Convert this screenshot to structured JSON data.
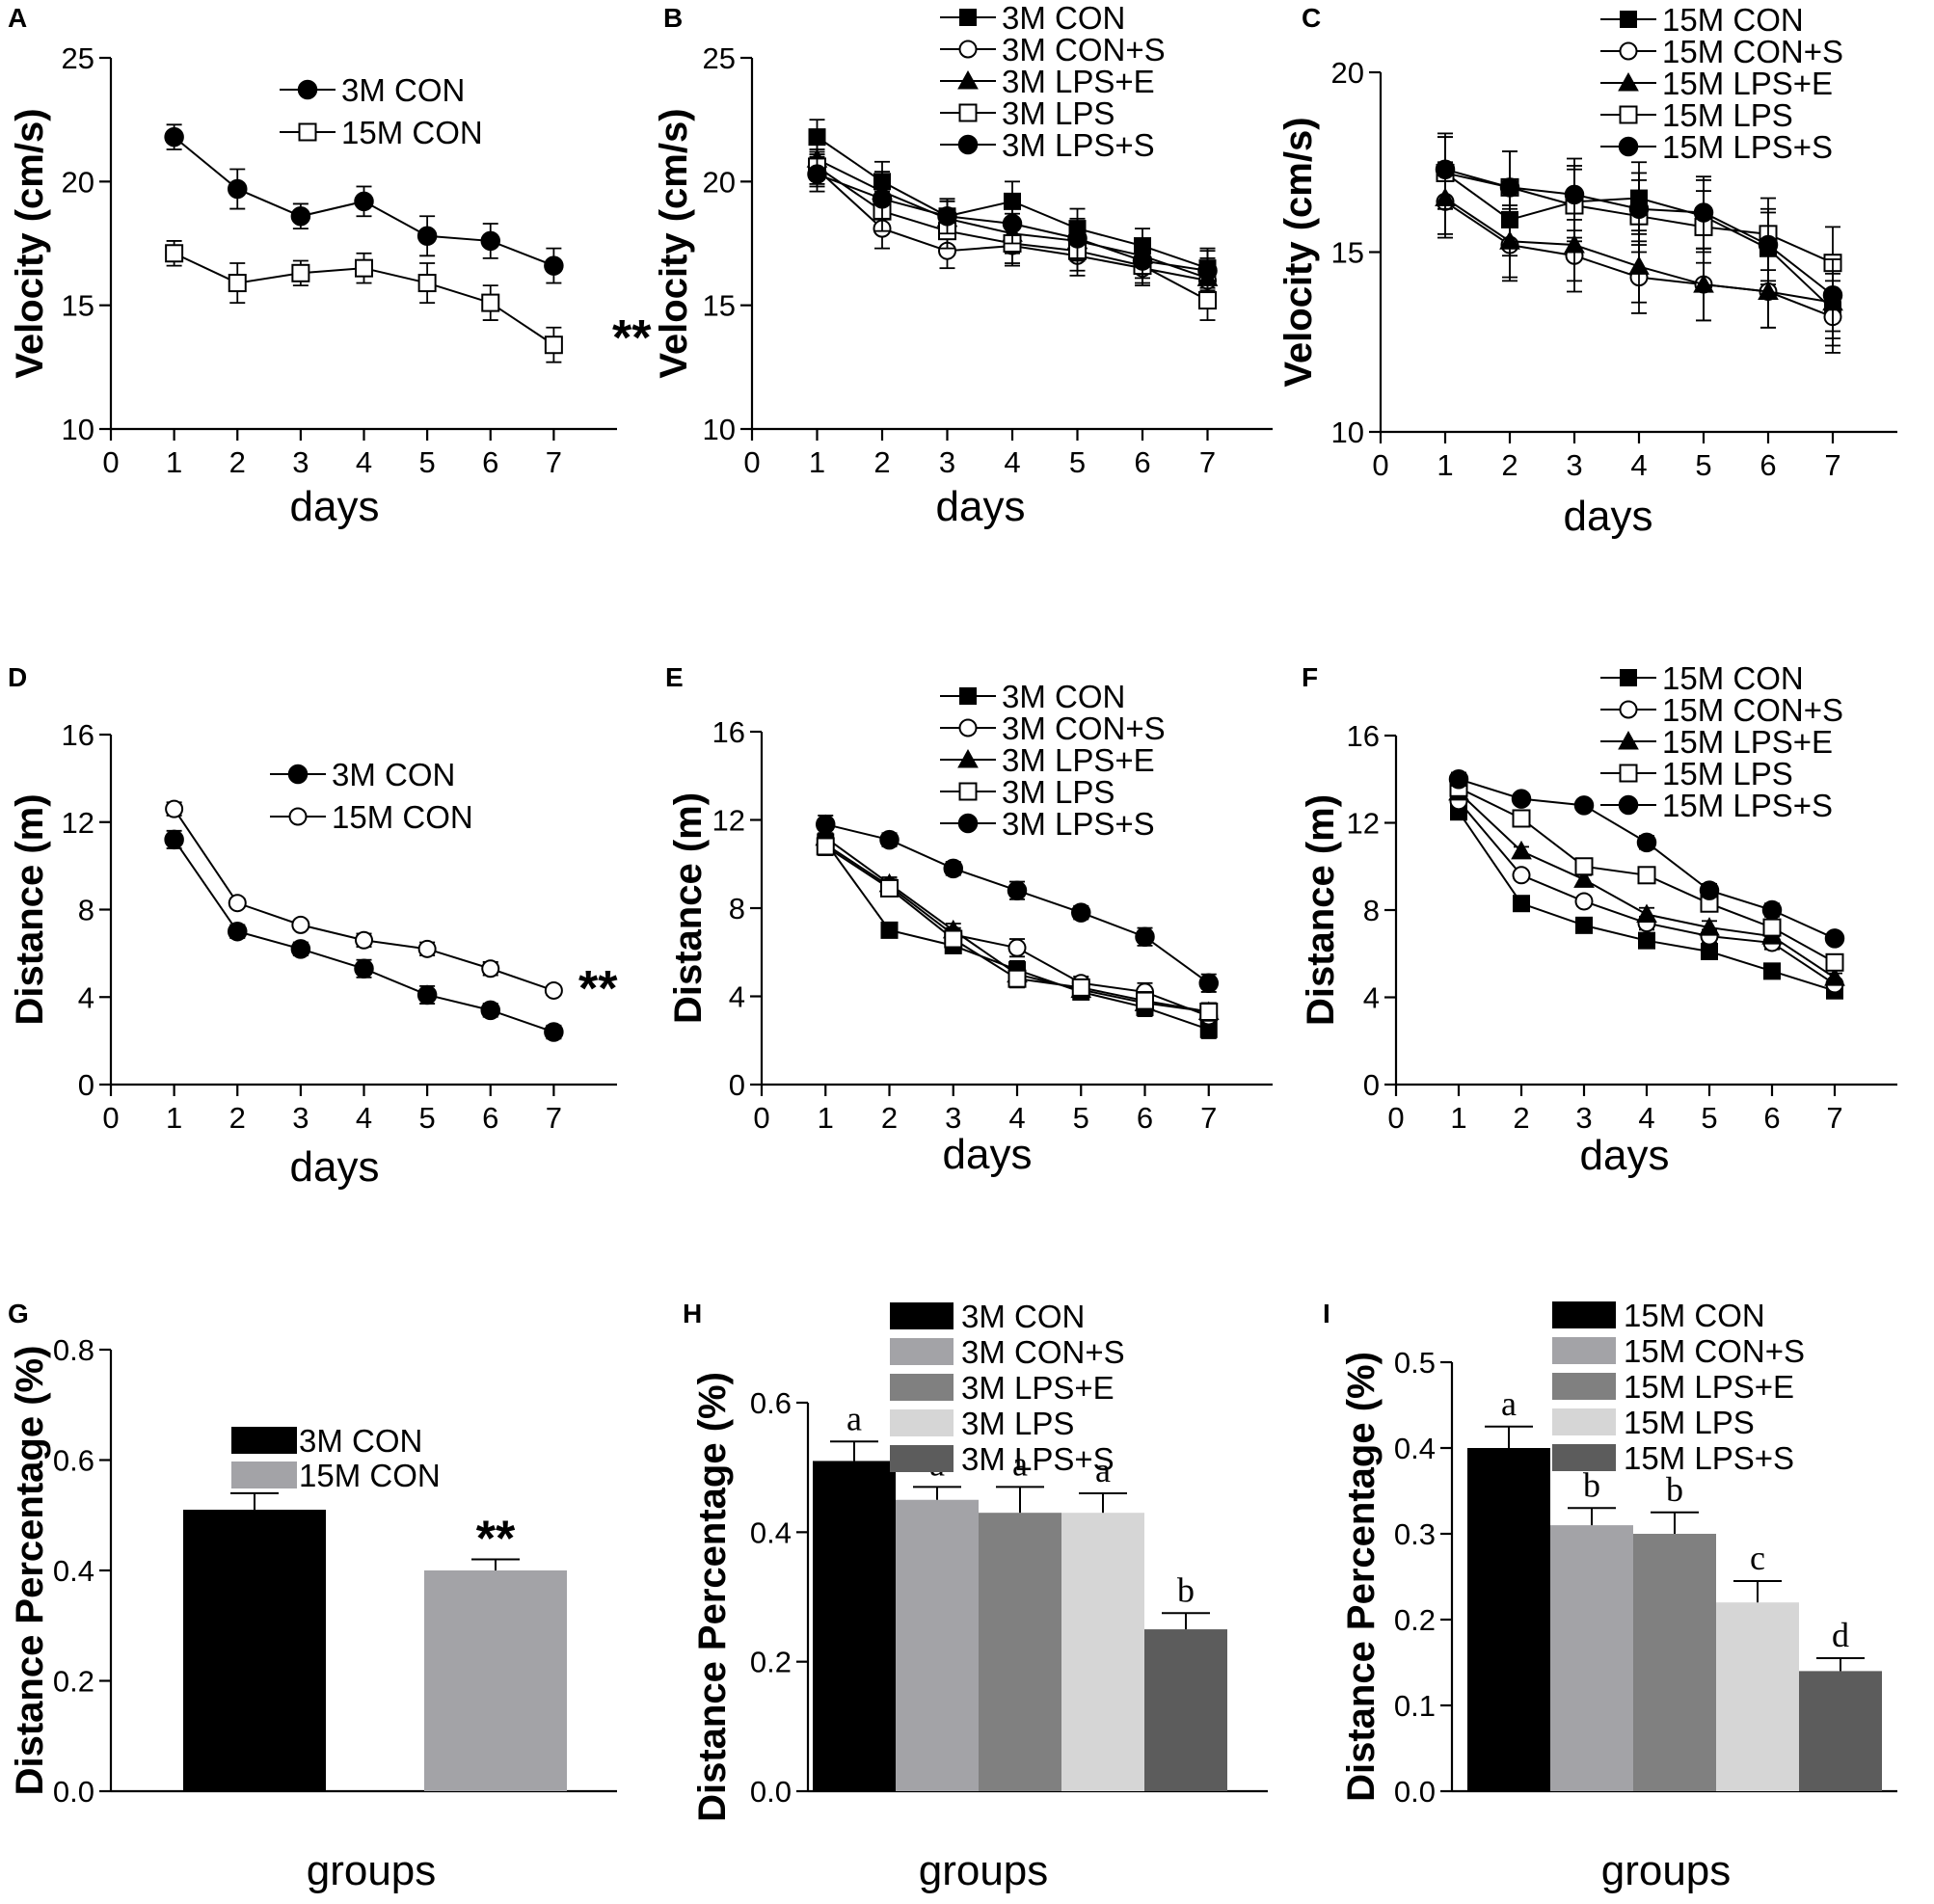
{
  "chart_data": [
    {
      "id": "A",
      "panel_label": "A",
      "type": "line",
      "xlabel": "days",
      "ylabel": "Velocity (cm/s)",
      "xlim": [
        0,
        8
      ],
      "ylim": [
        10,
        25
      ],
      "xticks": [
        "0",
        "1",
        "2",
        "3",
        "4",
        "5",
        "6",
        "7"
      ],
      "yticks": [
        "10",
        "15",
        "20",
        "25"
      ],
      "x": [
        1,
        2,
        3,
        4,
        5,
        6,
        7
      ],
      "series": [
        {
          "name": "3M CON",
          "marker": "filled-circle",
          "values": [
            21.8,
            19.7,
            18.6,
            19.2,
            17.8,
            17.6,
            16.6
          ],
          "errors": [
            0.5,
            0.8,
            0.5,
            0.6,
            0.8,
            0.7,
            0.7
          ]
        },
        {
          "name": "15M CON",
          "marker": "open-square",
          "values": [
            17.1,
            15.9,
            16.3,
            16.5,
            15.9,
            15.1,
            13.4
          ],
          "errors": [
            0.5,
            0.8,
            0.5,
            0.6,
            0.8,
            0.7,
            0.7
          ]
        }
      ],
      "annotation": "**"
    },
    {
      "id": "B",
      "panel_label": "B",
      "type": "line",
      "xlabel": "days",
      "ylabel": "Velocity (cm/s)",
      "xlim": [
        0,
        8
      ],
      "ylim": [
        10,
        25
      ],
      "xticks": [
        "0",
        "1",
        "2",
        "3",
        "4",
        "5",
        "6",
        "7"
      ],
      "yticks": [
        "10",
        "15",
        "20",
        "25"
      ],
      "x": [
        1,
        2,
        3,
        4,
        5,
        6,
        7
      ],
      "series": [
        {
          "name": "3M CON",
          "marker": "filled-square",
          "values": [
            21.8,
            20.0,
            18.6,
            19.2,
            18.1,
            17.4,
            16.5
          ],
          "errors": [
            0.7,
            0.8,
            0.7,
            0.8,
            0.8,
            0.7,
            0.8
          ]
        },
        {
          "name": "3M CON+S",
          "marker": "open-circle",
          "values": [
            20.5,
            18.1,
            17.2,
            17.4,
            17.0,
            16.5,
            16.0
          ],
          "errors": [
            0.7,
            0.8,
            0.7,
            0.8,
            0.8,
            0.7,
            0.8
          ]
        },
        {
          "name": "3M LPS+E",
          "marker": "filled-triangle",
          "values": [
            20.9,
            19.6,
            18.5,
            17.9,
            17.6,
            17.0,
            16.1
          ],
          "errors": [
            0.7,
            0.8,
            0.7,
            0.8,
            0.8,
            0.7,
            0.8
          ]
        },
        {
          "name": "3M LPS",
          "marker": "open-square",
          "values": [
            20.6,
            18.8,
            18.0,
            17.5,
            17.2,
            16.6,
            15.2
          ],
          "errors": [
            0.7,
            0.8,
            0.7,
            0.8,
            0.8,
            0.7,
            0.8
          ]
        },
        {
          "name": "3M LPS+S",
          "marker": "filled-circle",
          "values": [
            20.3,
            19.3,
            18.6,
            18.3,
            17.7,
            16.8,
            16.4
          ],
          "errors": [
            0.7,
            0.8,
            0.7,
            0.8,
            0.8,
            0.7,
            0.8
          ]
        }
      ]
    },
    {
      "id": "C",
      "panel_label": "C",
      "type": "line",
      "xlabel": "days",
      "ylabel": "Velocity (cm/s)",
      "xlim": [
        0,
        8
      ],
      "ylim": [
        10,
        20
      ],
      "xticks": [
        "0",
        "1",
        "2",
        "3",
        "4",
        "5",
        "6",
        "7"
      ],
      "yticks": [
        "10",
        "15",
        "20"
      ],
      "x": [
        1,
        2,
        3,
        4,
        5,
        6,
        7
      ],
      "series": [
        {
          "name": "15M CON",
          "marker": "filled-square",
          "values": [
            17.2,
            15.9,
            16.4,
            16.5,
            16.0,
            15.1,
            13.4
          ],
          "errors": [
            1.0,
            1.0,
            1.0,
            1.0,
            1.0,
            1.0,
            1.0
          ]
        },
        {
          "name": "15M CON+S",
          "marker": "open-circle",
          "values": [
            16.4,
            15.2,
            14.9,
            14.3,
            14.1,
            13.9,
            13.2
          ],
          "errors": [
            1.0,
            1.0,
            1.0,
            1.0,
            1.0,
            1.0,
            1.0
          ]
        },
        {
          "name": "15M LPS+E",
          "marker": "filled-triangle",
          "values": [
            16.5,
            15.3,
            15.2,
            14.6,
            14.1,
            13.9,
            13.6
          ],
          "errors": [
            1.0,
            1.0,
            1.0,
            1.0,
            1.0,
            1.0,
            1.0
          ]
        },
        {
          "name": "15M LPS",
          "marker": "open-square",
          "values": [
            17.2,
            16.8,
            16.3,
            16.0,
            15.7,
            15.5,
            14.7
          ],
          "errors": [
            1.0,
            1.0,
            1.0,
            1.0,
            1.0,
            1.0,
            1.0
          ]
        },
        {
          "name": "15M LPS+S",
          "marker": "filled-circle",
          "values": [
            17.3,
            16.8,
            16.6,
            16.2,
            16.1,
            15.2,
            13.8
          ],
          "errors": [
            1.0,
            1.0,
            1.0,
            1.0,
            1.0,
            1.0,
            1.0
          ]
        }
      ]
    },
    {
      "id": "D",
      "panel_label": "D",
      "type": "line",
      "xlabel": "days",
      "ylabel": "Distance (m)",
      "xlim": [
        0,
        8
      ],
      "ylim": [
        0,
        16
      ],
      "xticks": [
        "0",
        "1",
        "2",
        "3",
        "4",
        "5",
        "6",
        "7"
      ],
      "yticks": [
        "0",
        "4",
        "8",
        "12",
        "16"
      ],
      "x": [
        1,
        2,
        3,
        4,
        5,
        6,
        7
      ],
      "series": [
        {
          "name": "3M CON",
          "marker": "filled-circle",
          "values": [
            11.2,
            7.0,
            6.2,
            5.3,
            4.1,
            3.4,
            2.4
          ],
          "errors": [
            0.4,
            0.3,
            0.3,
            0.4,
            0.4,
            0.3,
            0.3
          ]
        },
        {
          "name": "15M CON",
          "marker": "open-circle",
          "values": [
            12.6,
            8.3,
            7.3,
            6.6,
            6.2,
            5.3,
            4.3
          ],
          "errors": [
            0.3,
            0.2,
            0.2,
            0.3,
            0.3,
            0.3,
            0.2
          ]
        }
      ],
      "annotation": "**"
    },
    {
      "id": "E",
      "panel_label": "E",
      "type": "line",
      "xlabel": "days",
      "ylabel": "Distance (m)",
      "xlim": [
        0,
        8
      ],
      "ylim": [
        0,
        16
      ],
      "xticks": [
        "0",
        "1",
        "2",
        "3",
        "4",
        "5",
        "6",
        "7"
      ],
      "yticks": [
        "0",
        "4",
        "8",
        "12",
        "16"
      ],
      "x": [
        1,
        2,
        3,
        4,
        5,
        6,
        7
      ],
      "series": [
        {
          "name": "3M CON",
          "marker": "filled-square",
          "values": [
            11.0,
            7.0,
            6.3,
            5.2,
            4.2,
            3.5,
            2.5
          ],
          "errors": [
            0.4,
            0.3,
            0.3,
            0.4,
            0.3,
            0.4,
            0.4
          ]
        },
        {
          "name": "3M CON+S",
          "marker": "open-circle",
          "values": [
            10.9,
            9.0,
            6.8,
            6.2,
            4.6,
            4.2,
            3.1
          ],
          "errors": [
            0.4,
            0.3,
            0.3,
            0.4,
            0.3,
            0.4,
            0.4
          ]
        },
        {
          "name": "3M LPS+E",
          "marker": "filled-triangle",
          "values": [
            11.2,
            9.1,
            7.0,
            5.0,
            4.3,
            3.7,
            3.3
          ],
          "errors": [
            0.4,
            0.3,
            0.3,
            0.4,
            0.3,
            0.4,
            0.4
          ]
        },
        {
          "name": "3M LPS",
          "marker": "open-square",
          "values": [
            10.8,
            8.9,
            6.6,
            4.8,
            4.4,
            3.8,
            3.3
          ],
          "errors": [
            0.4,
            0.3,
            0.3,
            0.4,
            0.3,
            0.4,
            0.4
          ]
        },
        {
          "name": "3M LPS+S",
          "marker": "filled-circle",
          "values": [
            11.8,
            11.1,
            9.8,
            8.8,
            7.8,
            6.7,
            4.6
          ],
          "errors": [
            0.4,
            0.3,
            0.3,
            0.4,
            0.3,
            0.4,
            0.4
          ]
        }
      ]
    },
    {
      "id": "F",
      "panel_label": "F",
      "type": "line",
      "xlabel": "days",
      "ylabel": "Distance (m)",
      "xlim": [
        0,
        8
      ],
      "ylim": [
        0,
        16
      ],
      "xticks": [
        "0",
        "1",
        "2",
        "3",
        "4",
        "5",
        "6",
        "7"
      ],
      "yticks": [
        "0",
        "4",
        "8",
        "12",
        "16"
      ],
      "x": [
        1,
        2,
        3,
        4,
        5,
        6,
        7
      ],
      "series": [
        {
          "name": "15M CON",
          "marker": "filled-square",
          "values": [
            12.5,
            8.3,
            7.3,
            6.6,
            6.1,
            5.2,
            4.3
          ],
          "errors": [
            0.3,
            0.2,
            0.2,
            0.3,
            0.3,
            0.3,
            0.2
          ]
        },
        {
          "name": "15M CON+S",
          "marker": "open-circle",
          "values": [
            13.0,
            9.6,
            8.4,
            7.4,
            6.8,
            6.5,
            4.6
          ],
          "errors": [
            0.3,
            0.2,
            0.2,
            0.3,
            0.3,
            0.3,
            0.2
          ]
        },
        {
          "name": "15M LPS+E",
          "marker": "filled-triangle",
          "values": [
            13.4,
            10.7,
            9.4,
            7.8,
            7.2,
            6.8,
            4.9
          ],
          "errors": [
            0.3,
            0.2,
            0.2,
            0.3,
            0.3,
            0.3,
            0.2
          ]
        },
        {
          "name": "15M LPS",
          "marker": "open-square",
          "values": [
            13.6,
            12.2,
            10.0,
            9.6,
            8.3,
            7.2,
            5.6
          ],
          "errors": [
            0.3,
            0.2,
            0.2,
            0.3,
            0.3,
            0.3,
            0.2
          ]
        },
        {
          "name": "15M LPS+S",
          "marker": "filled-circle",
          "values": [
            14.0,
            13.1,
            12.8,
            11.1,
            8.9,
            8.0,
            6.7
          ],
          "errors": [
            0.3,
            0.2,
            0.2,
            0.3,
            0.3,
            0.3,
            0.2
          ]
        }
      ]
    },
    {
      "id": "G",
      "panel_label": "G",
      "type": "bar",
      "xlabel": "groups",
      "ylabel": "Distance Percentage (%)",
      "ylim": [
        0,
        0.8
      ],
      "yticks": [
        "0.0",
        "0.2",
        "0.4",
        "0.6",
        "0.8"
      ],
      "categories": [
        "3M CON",
        "15M CON"
      ],
      "values": [
        0.51,
        0.4
      ],
      "errors": [
        0.03,
        0.02
      ],
      "colors": [
        "#000000",
        "#a3a3a7"
      ],
      "bar_labels": [
        "",
        "**"
      ]
    },
    {
      "id": "H",
      "panel_label": "H",
      "type": "bar",
      "xlabel": "groups",
      "ylabel": "Distance Percentage (%)",
      "ylim": [
        0,
        0.6
      ],
      "yticks": [
        "0.0",
        "0.2",
        "0.4",
        "0.6"
      ],
      "categories": [
        "3M CON",
        "3M CON+S",
        "3M LPS+E",
        "3M LPS",
        "3M LPS+S"
      ],
      "values": [
        0.51,
        0.45,
        0.43,
        0.43,
        0.25
      ],
      "errors": [
        0.03,
        0.02,
        0.04,
        0.03,
        0.025
      ],
      "colors": [
        "#000000",
        "#a3a3a7",
        "#808080",
        "#d6d6d6",
        "#5c5c5c"
      ],
      "bar_labels": [
        "a",
        "a",
        "a",
        "a",
        "b"
      ]
    },
    {
      "id": "I",
      "panel_label": "I",
      "type": "bar",
      "xlabel": "groups",
      "ylabel": "Distance Percentage (%)",
      "ylim": [
        0,
        0.5
      ],
      "yticks": [
        "0.0",
        "0.1",
        "0.2",
        "0.3",
        "0.4",
        "0.5"
      ],
      "categories": [
        "15M CON",
        "15M CON+S",
        "15M LPS+E",
        "15M LPS",
        "15M LPS+S"
      ],
      "values": [
        0.4,
        0.31,
        0.3,
        0.22,
        0.14
      ],
      "errors": [
        0.025,
        0.02,
        0.025,
        0.025,
        0.015
      ],
      "colors": [
        "#000000",
        "#a3a3a7",
        "#808080",
        "#d6d6d6",
        "#5c5c5c"
      ],
      "bar_labels": [
        "a",
        "b",
        "b",
        "c",
        "d"
      ]
    }
  ]
}
